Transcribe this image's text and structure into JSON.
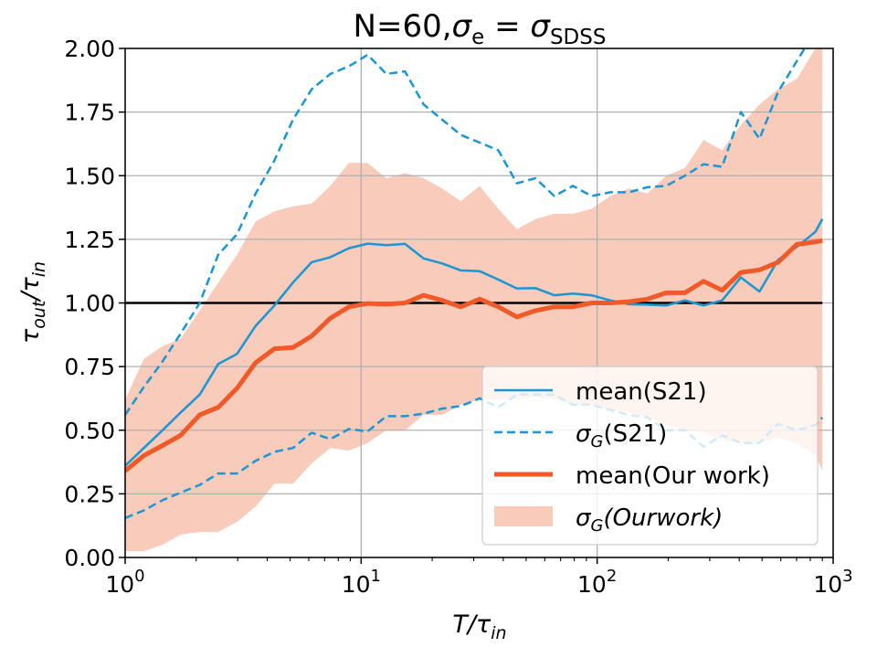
{
  "chart_data": {
    "type": "line",
    "title_main": "N=60,",
    "title_sym": "σ",
    "title_sub1": "e",
    "title_eq": " = ",
    "title_sym2": "σ",
    "title_sub2": "SDSS",
    "xlabel_main": "T/τ",
    "xlabel_sub": "in",
    "ylabel_main": "τ",
    "ylabel_sub1": "out",
    "ylabel_slash": "/τ",
    "ylabel_sub2": "in",
    "xscale": "log",
    "xlim": [
      1,
      1000
    ],
    "ylim": [
      0,
      2.0
    ],
    "grid": true,
    "legend_position": "lower-right",
    "x_ticks": [
      {
        "value": 1,
        "base": "10",
        "exp": "0"
      },
      {
        "value": 10,
        "base": "10",
        "exp": "1"
      },
      {
        "value": 100,
        "base": "10",
        "exp": "2"
      },
      {
        "value": 1000,
        "base": "10",
        "exp": "3"
      }
    ],
    "y_ticks": [
      {
        "value": 0.0,
        "label": "0.00"
      },
      {
        "value": 0.25,
        "label": "0.25"
      },
      {
        "value": 0.5,
        "label": "0.50"
      },
      {
        "value": 0.75,
        "label": "0.75"
      },
      {
        "value": 1.0,
        "label": "1.00"
      },
      {
        "value": 1.25,
        "label": "1.25"
      },
      {
        "value": 1.5,
        "label": "1.50"
      },
      {
        "value": 1.75,
        "label": "1.75"
      },
      {
        "value": 2.0,
        "label": "2.00"
      }
    ],
    "reference_line": {
      "y": 1.0,
      "color": "#000000"
    },
    "colors": {
      "s21": "#1a96d4",
      "ours": "#f05a28",
      "band": "#f8cbbb"
    },
    "x": [
      1.0,
      1.2,
      1.44,
      1.72,
      2.07,
      2.48,
      2.98,
      3.57,
      4.29,
      5.14,
      6.17,
      7.4,
      8.88,
      10.65,
      12.78,
      15.33,
      18.39,
      22.06,
      26.47,
      31.75,
      38.09,
      45.7,
      54.83,
      65.78,
      78.91,
      94.67,
      113.6,
      136.3,
      163.5,
      196.1,
      235.3,
      282.3,
      338.7,
      406.3,
      487.4,
      584.8,
      701.6,
      841.7,
      900
    ],
    "series": [
      {
        "name": "mean(S21)",
        "style": "solid",
        "values": [
          0.36,
          0.43,
          0.5,
          0.57,
          0.64,
          0.76,
          0.8,
          0.91,
          0.99,
          1.08,
          1.16,
          1.18,
          1.215,
          1.233,
          1.227,
          1.232,
          1.175,
          1.155,
          1.128,
          1.125,
          1.092,
          1.057,
          1.058,
          1.03,
          1.037,
          1.03,
          1.01,
          0.995,
          0.993,
          0.99,
          1.01,
          0.99,
          1.01,
          1.1,
          1.045,
          1.17,
          1.22,
          1.28,
          1.33
        ]
      },
      {
        "name": "σ_G(S21) upper",
        "style": "dashed",
        "values": [
          0.56,
          0.67,
          0.77,
          0.88,
          1.0,
          1.19,
          1.27,
          1.43,
          1.56,
          1.72,
          1.84,
          1.9,
          1.93,
          1.975,
          1.9,
          1.91,
          1.78,
          1.72,
          1.66,
          1.63,
          1.6,
          1.47,
          1.49,
          1.42,
          1.46,
          1.42,
          1.435,
          1.435,
          1.455,
          1.46,
          1.5,
          1.545,
          1.535,
          1.75,
          1.645,
          1.83,
          1.95,
          2.07,
          2.1
        ]
      },
      {
        "name": "σ_G(S21) lower",
        "style": "dashed",
        "values": [
          0.155,
          0.185,
          0.225,
          0.255,
          0.285,
          0.33,
          0.33,
          0.38,
          0.415,
          0.43,
          0.49,
          0.465,
          0.505,
          0.495,
          0.555,
          0.555,
          0.565,
          0.585,
          0.595,
          0.625,
          0.59,
          0.64,
          0.64,
          0.64,
          0.6,
          0.6,
          0.58,
          0.56,
          0.55,
          0.5,
          0.5,
          0.435,
          0.48,
          0.45,
          0.45,
          0.525,
          0.5,
          0.52,
          0.55
        ]
      },
      {
        "name": "mean(Our work)",
        "style": "solid-thick",
        "values": [
          0.34,
          0.4,
          0.44,
          0.48,
          0.56,
          0.59,
          0.665,
          0.765,
          0.82,
          0.825,
          0.87,
          0.94,
          0.985,
          0.998,
          0.995,
          1.0,
          1.03,
          1.01,
          0.985,
          1.015,
          0.985,
          0.945,
          0.97,
          0.985,
          0.985,
          1.0,
          1.0,
          1.005,
          1.015,
          1.04,
          1.04,
          1.085,
          1.05,
          1.12,
          1.13,
          1.16,
          1.23,
          1.24,
          1.245
        ]
      }
    ],
    "band": {
      "name": "σ_G(Our work)",
      "upper": [
        0.62,
        0.78,
        0.83,
        0.86,
        0.97,
        1.08,
        1.19,
        1.32,
        1.36,
        1.38,
        1.39,
        1.46,
        1.55,
        1.55,
        1.49,
        1.51,
        1.49,
        1.45,
        1.4,
        1.46,
        1.37,
        1.29,
        1.33,
        1.35,
        1.35,
        1.37,
        1.42,
        1.45,
        1.43,
        1.5,
        1.53,
        1.64,
        1.6,
        1.7,
        1.78,
        1.84,
        1.88,
        2.0,
        2.0
      ],
      "lower": [
        0.025,
        0.025,
        0.05,
        0.09,
        0.1,
        0.1,
        0.14,
        0.2,
        0.29,
        0.29,
        0.37,
        0.43,
        0.42,
        0.45,
        0.5,
        0.5,
        0.56,
        0.56,
        0.6,
        0.62,
        0.62,
        0.62,
        0.63,
        0.62,
        0.6,
        0.6,
        0.58,
        0.57,
        0.55,
        0.52,
        0.5,
        0.49,
        0.46,
        0.45,
        0.45,
        0.47,
        0.45,
        0.4,
        0.34
      ]
    },
    "legend": [
      {
        "label_main": "mean(S21)",
        "label_sub": "",
        "label_rest": "",
        "italic": false
      },
      {
        "label_main": "σ",
        "label_sub": "G",
        "label_rest": "(S21)",
        "italic": false
      },
      {
        "label_main": "mean(Our work)",
        "label_sub": "",
        "label_rest": "",
        "italic": false
      },
      {
        "label_main": "σ",
        "label_sub": "G",
        "label_rest": "(Ourwork)",
        "italic": true
      }
    ]
  }
}
